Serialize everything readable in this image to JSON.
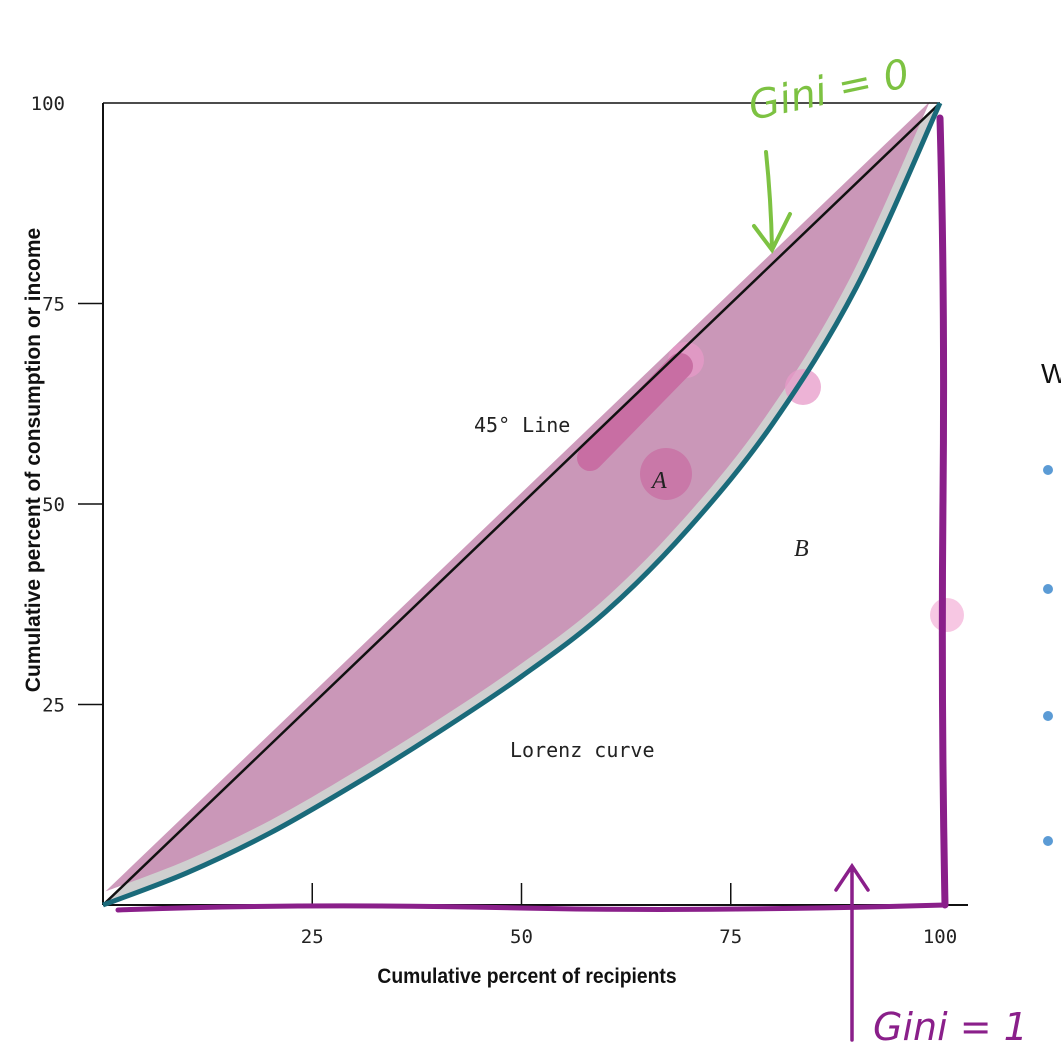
{
  "chart_data": {
    "type": "line",
    "xlabel": "Cumulative percent of recipients",
    "ylabel": "Cumulative percent of consumption or income",
    "xlim": [
      0,
      100
    ],
    "ylim": [
      0,
      100
    ],
    "x_ticks": [
      "25",
      "50",
      "75",
      "100"
    ],
    "y_ticks": [
      "25",
      "50",
      "75",
      "100"
    ],
    "series": [
      {
        "name": "45° Line",
        "x": [
          0,
          100
        ],
        "y": [
          0,
          100
        ]
      },
      {
        "name": "Lorenz curve",
        "x": [
          0,
          10,
          20,
          30,
          40,
          50,
          60,
          70,
          80,
          90,
          100
        ],
        "y": [
          0,
          4,
          9,
          15,
          21.5,
          28.5,
          36.5,
          47,
          60,
          77,
          100
        ]
      }
    ],
    "annotations": {
      "region_a": "A",
      "region_b": "B"
    },
    "grid": false,
    "handwritten": {
      "top": "Gini = 0",
      "bottom": "Gini = 1"
    }
  },
  "colors": {
    "lorenz": "#1a6a7a",
    "diagonal": "#111111",
    "highlight_fill": "#c78fb3",
    "green_ink": "#7dc242",
    "purple_ink": "#8a1f8a",
    "bullet": "#5b9bd5"
  },
  "side_text": {
    "heading": "W"
  }
}
